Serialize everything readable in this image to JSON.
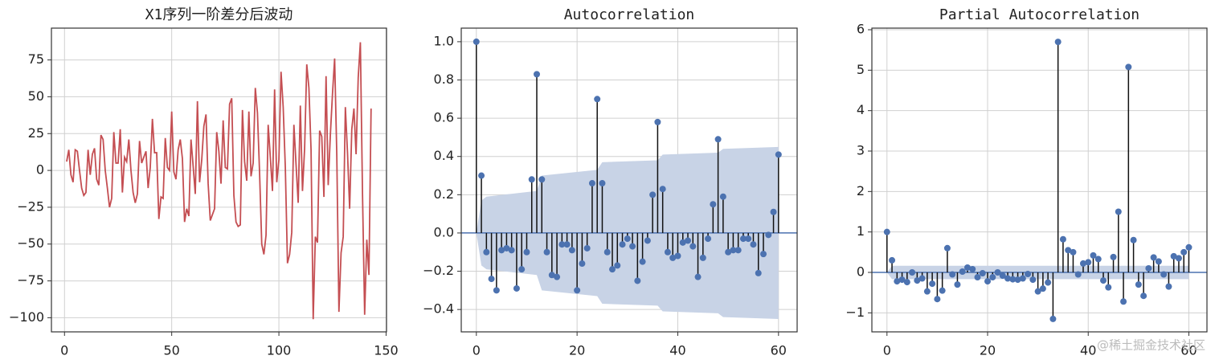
{
  "chart_data": [
    {
      "type": "line",
      "title": "X1序列一阶差分后波动",
      "color": "#c44e52",
      "grid": true,
      "x": [
        1,
        2,
        3,
        4,
        5,
        6,
        7,
        8,
        9,
        10,
        11,
        12,
        13,
        14,
        15,
        16,
        17,
        18,
        19,
        20,
        21,
        22,
        23,
        24,
        25,
        26,
        27,
        28,
        29,
        30,
        31,
        32,
        33,
        34,
        35,
        36,
        37,
        38,
        39,
        40,
        41,
        42,
        43,
        44,
        45,
        46,
        47,
        48,
        49,
        50,
        51,
        52,
        53,
        54,
        55,
        56,
        57,
        58,
        59,
        60,
        61,
        62,
        63,
        64,
        65,
        66,
        67,
        68,
        69,
        70,
        71,
        72,
        73,
        74,
        75,
        76,
        77,
        78,
        79,
        80,
        81,
        82,
        83,
        84,
        85,
        86,
        87,
        88,
        89,
        90,
        91,
        92,
        93,
        94,
        95,
        96,
        97,
        98,
        99,
        100,
        101,
        102,
        103,
        104,
        105,
        106,
        107,
        108,
        109,
        110,
        111,
        112,
        113,
        114,
        115,
        116,
        117,
        118,
        119,
        120,
        121,
        122,
        123,
        124,
        125,
        126,
        127,
        128,
        129,
        130,
        131,
        132,
        133,
        134,
        135,
        136,
        137,
        138,
        139,
        140,
        141,
        142,
        143
      ],
      "values": [
        6,
        14,
        -3,
        -8,
        14,
        13,
        0,
        -12,
        -17,
        -15,
        14,
        -3,
        11,
        15,
        -6,
        -10,
        24,
        21,
        0,
        -12,
        -25,
        -19,
        26,
        5,
        5,
        28,
        -15,
        9,
        6,
        21,
        0,
        -15,
        -22,
        -16,
        20,
        5,
        9,
        13,
        -12,
        2,
        35,
        12,
        12,
        -33,
        -18,
        -19,
        22,
        2,
        0,
        40,
        -1,
        -6,
        14,
        21,
        8,
        -35,
        -26,
        -31,
        21,
        3,
        -16,
        47,
        -8,
        7,
        30,
        38,
        -9,
        -34,
        -30,
        -26,
        26,
        13,
        -9,
        34,
        2,
        1,
        45,
        49,
        -17,
        -35,
        -38,
        -37,
        41,
        6,
        -7,
        40,
        -4,
        5,
        56,
        39,
        -2,
        -50,
        -57,
        -44,
        31,
        9,
        -14,
        55,
        -8,
        7,
        67,
        43,
        2,
        -63,
        -57,
        -42,
        31,
        4,
        -22,
        44,
        -14,
        15,
        72,
        56,
        14,
        -101,
        -45,
        -49,
        27,
        23,
        -18,
        64,
        -10,
        24,
        52,
        76,
        11,
        -96,
        -56,
        -45,
        43,
        12,
        -26,
        28,
        42,
        11,
        63,
        87,
        -16,
        -98,
        -47,
        -71,
        42
      ],
      "xlim": [
        -6.1,
        150.2
      ],
      "ylim": [
        -109.6,
        96.6
      ],
      "xticks": [
        0,
        50,
        100,
        150
      ],
      "yticks": [
        {
          "value": -100,
          "label": "−100"
        },
        {
          "value": -75,
          "label": "−75"
        },
        {
          "value": -50,
          "label": "−50"
        },
        {
          "value": -25,
          "label": "−25"
        },
        0,
        25,
        50,
        75
      ]
    },
    {
      "type": "stem",
      "title": "Autocorrelation",
      "color": "#4c72b0",
      "grid": true,
      "x": [
        0,
        1,
        2,
        3,
        4,
        5,
        6,
        7,
        8,
        9,
        10,
        11,
        12,
        13,
        14,
        15,
        16,
        17,
        18,
        19,
        20,
        21,
        22,
        23,
        24,
        25,
        26,
        27,
        28,
        29,
        30,
        31,
        32,
        33,
        34,
        35,
        36,
        37,
        38,
        39,
        40,
        41,
        42,
        43,
        44,
        45,
        46,
        47,
        48,
        49,
        50,
        51,
        52,
        53,
        54,
        55,
        56,
        57,
        58,
        59,
        60
      ],
      "values": [
        1.0,
        0.3,
        -0.1,
        -0.24,
        -0.3,
        -0.09,
        -0.08,
        -0.09,
        -0.29,
        -0.19,
        -0.1,
        0.28,
        0.83,
        0.28,
        -0.1,
        -0.22,
        -0.23,
        -0.06,
        -0.06,
        -0.09,
        -0.3,
        -0.16,
        -0.08,
        0.26,
        0.7,
        0.26,
        -0.1,
        -0.19,
        -0.17,
        -0.06,
        -0.03,
        -0.07,
        -0.25,
        -0.15,
        -0.04,
        0.2,
        0.58,
        0.23,
        -0.1,
        -0.13,
        -0.12,
        -0.05,
        -0.04,
        -0.07,
        -0.23,
        -0.13,
        -0.03,
        0.15,
        0.49,
        0.19,
        -0.1,
        -0.09,
        -0.09,
        -0.03,
        -0.03,
        -0.06,
        -0.21,
        -0.11,
        -0.01,
        0.11,
        0.41
      ],
      "band": {
        "color": "#c8d3e6",
        "x": [
          0,
          1,
          2,
          12,
          13,
          24,
          25,
          36,
          37,
          48,
          49,
          60
        ],
        "upper": [
          0,
          0.17,
          0.19,
          0.22,
          0.3,
          0.33,
          0.37,
          0.38,
          0.41,
          0.42,
          0.44,
          0.45
        ],
        "lower": [
          0,
          -0.17,
          -0.19,
          -0.22,
          -0.3,
          -0.33,
          -0.37,
          -0.38,
          -0.41,
          -0.42,
          -0.44,
          -0.45
        ]
      },
      "xlim": [
        -3.0,
        63.7
      ],
      "ylim": [
        -0.517,
        1.071
      ],
      "xticks": [
        0,
        20,
        40,
        60
      ],
      "yticks": [
        {
          "value": -0.4,
          "label": "−0.4"
        },
        {
          "value": -0.2,
          "label": "−0.2"
        },
        {
          "value": 0,
          "label": "0.0"
        },
        0.2,
        0.4,
        0.6,
        0.8,
        {
          "value": 1,
          "label": "1.0"
        }
      ]
    },
    {
      "type": "stem",
      "title": "Partial Autocorrelation",
      "color": "#4c72b0",
      "grid": true,
      "x": [
        0,
        1,
        2,
        3,
        4,
        5,
        6,
        7,
        8,
        9,
        10,
        11,
        12,
        13,
        14,
        15,
        16,
        17,
        18,
        19,
        20,
        21,
        22,
        23,
        24,
        25,
        26,
        27,
        28,
        29,
        30,
        31,
        32,
        33,
        34,
        35,
        36,
        37,
        38,
        39,
        40,
        41,
        42,
        43,
        44,
        45,
        46,
        47,
        48,
        49,
        50,
        51,
        52,
        53,
        54,
        55,
        56,
        57,
        58,
        59,
        60
      ],
      "values": [
        1.0,
        0.3,
        -0.22,
        -0.18,
        -0.24,
        0.0,
        -0.2,
        -0.15,
        -0.47,
        -0.28,
        -0.66,
        -0.45,
        0.6,
        -0.05,
        -0.3,
        0.02,
        0.12,
        0.08,
        -0.12,
        -0.02,
        -0.22,
        -0.12,
        0.0,
        -0.08,
        -0.15,
        -0.17,
        -0.18,
        -0.15,
        -0.04,
        -0.18,
        -0.47,
        -0.4,
        -0.25,
        -1.15,
        5.7,
        0.82,
        0.55,
        0.5,
        -0.05,
        0.22,
        0.25,
        0.42,
        0.33,
        -0.2,
        -0.37,
        0.38,
        1.5,
        -0.72,
        5.08,
        0.8,
        -0.3,
        -0.58,
        0.1,
        0.37,
        0.27,
        -0.05,
        -0.35,
        0.4,
        0.35,
        0.5,
        0.62
      ],
      "band": {
        "color": "#c8d3e6",
        "x": [
          0,
          1,
          60
        ],
        "upper": [
          0,
          0.165,
          0.165
        ],
        "lower": [
          0,
          -0.165,
          -0.165
        ]
      },
      "xlim": [
        -3.0,
        63.6
      ],
      "ylim": [
        -1.47,
        6.04
      ],
      "xticks": [
        0,
        20,
        40,
        60
      ],
      "yticks": [
        {
          "value": -1,
          "label": "−1"
        },
        0,
        1,
        2,
        3,
        4,
        5,
        6
      ]
    }
  ],
  "watermark": "@稀土掘金技术社区"
}
